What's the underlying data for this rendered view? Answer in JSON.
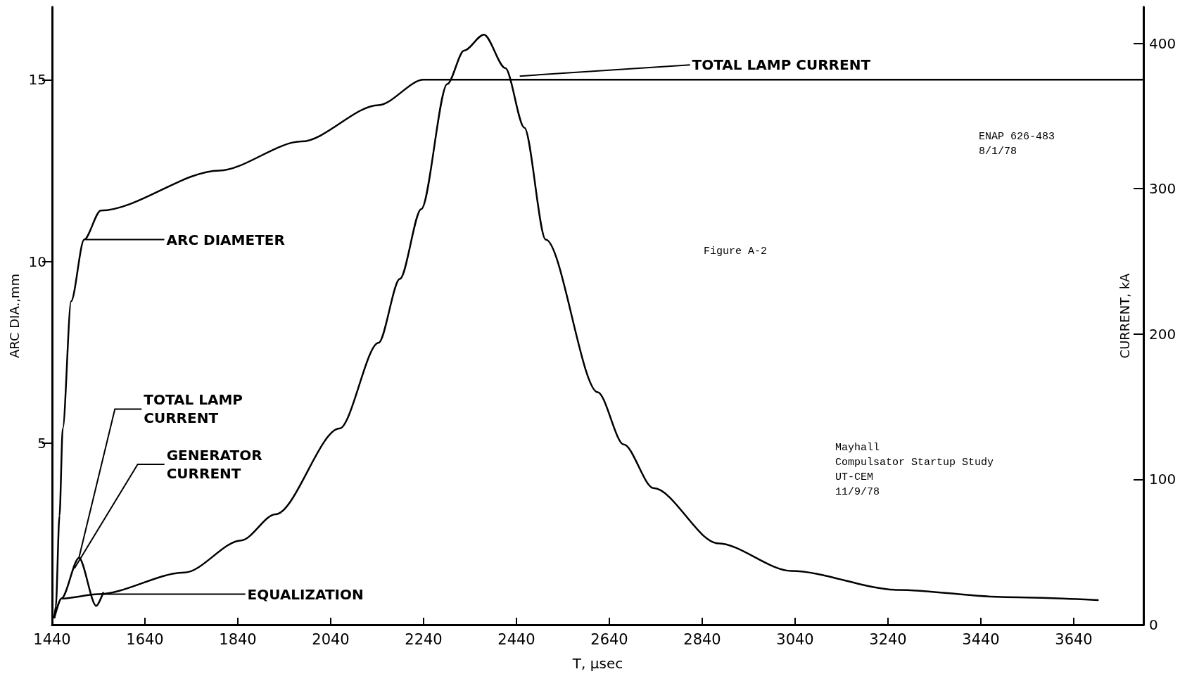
{
  "chart_data": {
    "type": "line",
    "xlabel": "T, μsec",
    "ylabel": "ARC DIA.,mm",
    "y2label": "CURRENT, kA",
    "xlim": [
      1440,
      3790
    ],
    "xticks": [
      1440,
      1640,
      1840,
      2040,
      2240,
      2440,
      2640,
      2840,
      3040,
      3240,
      3440,
      3640
    ],
    "ylim": [
      0,
      17
    ],
    "yticks": [
      5,
      10,
      15
    ],
    "y2lim": [
      0,
      425
    ],
    "y2ticks": [
      0,
      100,
      200,
      300,
      400
    ],
    "marker": "none",
    "line_style": "solid",
    "series": [
      {
        "color": "#000000",
        "axis": "y",
        "x": [
          1445,
          1448,
          1456,
          1463,
          1481,
          1509,
          1545,
          1800,
          1977,
          2143,
          2240,
          3790
        ],
        "values": [
          0.2,
          0.5,
          3.0,
          5.4,
          8.9,
          10.6,
          11.4,
          12.5,
          13.3,
          14.3,
          15.0,
          15.0
        ]
      },
      {
        "color": "#000000",
        "axis": "y2",
        "x": [
          1445,
          1460,
          1540,
          1726,
          1847,
          1921,
          2059,
          2143,
          2189,
          2235,
          2291,
          2327,
          2370,
          2416,
          2457,
          2503,
          2615,
          2671,
          2735,
          2874,
          3032,
          3262,
          3493,
          3692
        ],
        "values": [
          5,
          18,
          21,
          36,
          58,
          76,
          135,
          194,
          238,
          286,
          372,
          395,
          406,
          383,
          342,
          265,
          160,
          124,
          94,
          56,
          37,
          24,
          19,
          17
        ]
      },
      {
        "color": "#000000",
        "axis": "y2",
        "x": [
          1445,
          1460,
          1498,
          1535,
          1550
        ],
        "values": [
          5,
          18,
          46,
          13,
          22
        ]
      }
    ],
    "annotations": [
      {
        "text": "TOTAL LAMP CURRENT",
        "x": 2447,
        "y": 15.1
      },
      {
        "text": "ARC DIAMETER",
        "x": 1512,
        "y": 10.6
      },
      {
        "text": "TOTAL LAMP\nCURRENT",
        "x": 1498,
        "y": 1.85
      },
      {
        "text": "GENERATOR\nCURRENT",
        "x": 1488,
        "y": 1.55
      },
      {
        "text": "EQUALIZATION",
        "x": 1550,
        "y": 0.84
      },
      "ENAP 626-483\n8/1/78",
      "Figure A-2",
      "Mayhall\nCompulsator Startup Study\nUT-CEM\n11/9/78"
    ]
  }
}
